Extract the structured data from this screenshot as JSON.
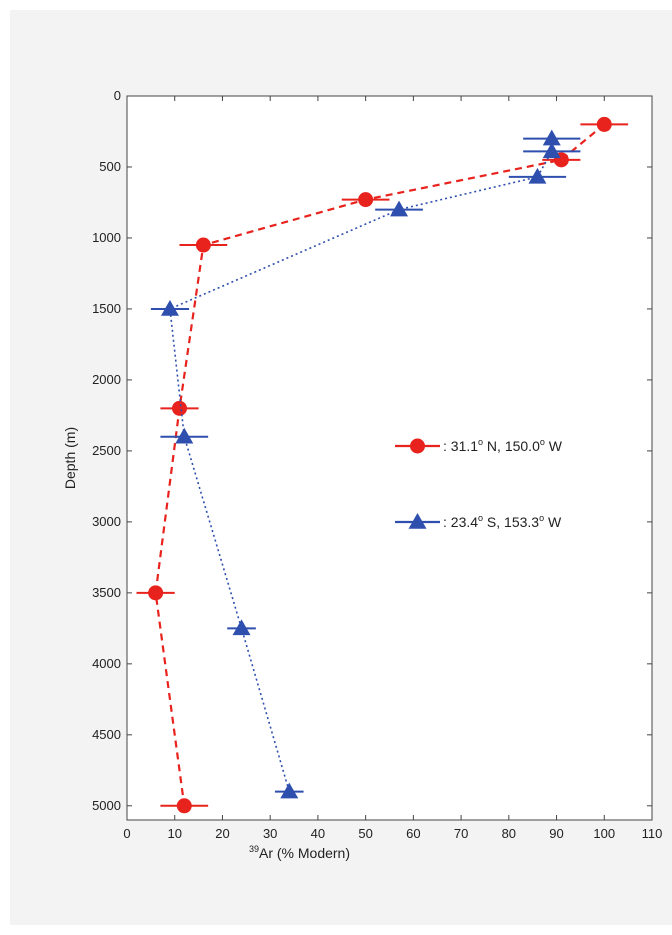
{
  "chart_data": {
    "type": "scatter",
    "xlabel_sup": "39",
    "xlabel_main": "Ar (% Modern)",
    "ylabel": "Depth (m)",
    "xlim": [
      0,
      110
    ],
    "ylim": [
      5100,
      0
    ],
    "y_inverted": true,
    "x_ticks": [
      "0",
      "10",
      "20",
      "30",
      "40",
      "50",
      "60",
      "70",
      "80",
      "90",
      "100",
      "110"
    ],
    "y_ticks": [
      "0",
      "500",
      "1000",
      "1500",
      "2000",
      "2500",
      "3000",
      "3500",
      "4000",
      "4500",
      "5000"
    ],
    "grid": false,
    "legend_placement": "right-middle",
    "series": [
      {
        "name": ": 31.1° N, 150.0° W",
        "legend_parts": [
          ": 31.1",
          "o",
          " N, 150.0",
          "o",
          " W"
        ],
        "marker": "circle",
        "line_style": "dashed",
        "color": "#e8221c",
        "points": [
          {
            "x": 100,
            "y": 200,
            "xerr": 5
          },
          {
            "x": 91,
            "y": 450,
            "xerr": 4
          },
          {
            "x": 50,
            "y": 730,
            "xerr": 5
          },
          {
            "x": 16,
            "y": 1050,
            "xerr": 5
          },
          {
            "x": 11,
            "y": 2200,
            "xerr": 4
          },
          {
            "x": 6,
            "y": 3500,
            "xerr": 4
          },
          {
            "x": 12,
            "y": 5000,
            "xerr": 5
          }
        ]
      },
      {
        "name": ": 23.4° S, 153.3° W",
        "legend_parts": [
          ": 23.4",
          "o",
          " S, 153.3",
          "o",
          " W"
        ],
        "marker": "triangle",
        "line_style": "dotted",
        "color": "#2e4fae",
        "points": [
          {
            "x": 89,
            "y": 300,
            "xerr": 6
          },
          {
            "x": 89,
            "y": 390,
            "xerr": 6
          },
          {
            "x": 86,
            "y": 570,
            "xerr": 6
          },
          {
            "x": 57,
            "y": 800,
            "xerr": 5
          },
          {
            "x": 9,
            "y": 1500,
            "xerr": 4
          },
          {
            "x": 12,
            "y": 2400,
            "xerr": 5
          },
          {
            "x": 24,
            "y": 3750,
            "xerr": 3
          },
          {
            "x": 34,
            "y": 4900,
            "xerr": 3
          }
        ]
      }
    ]
  }
}
